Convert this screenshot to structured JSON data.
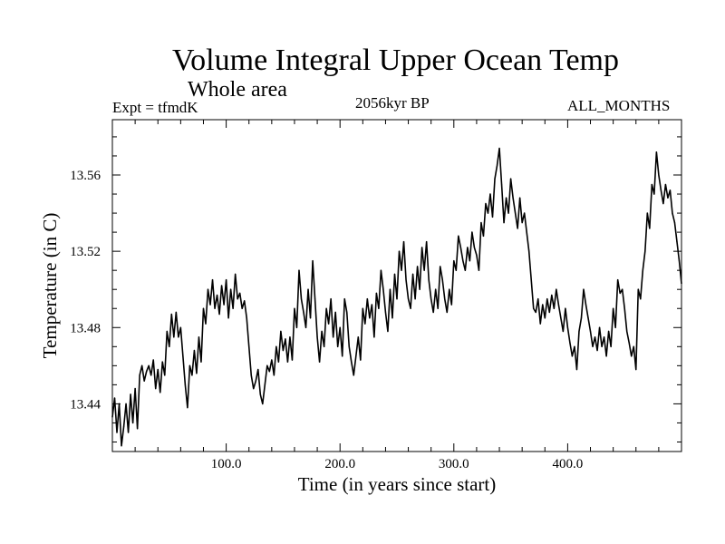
{
  "chart_data": {
    "type": "line",
    "title": "Volume Integral Upper Ocean Temp",
    "subtitle": "Whole area",
    "experiment": "Expt = tfmdK",
    "period": "2056kyr BP",
    "months": "ALL_MONTHS",
    "xlabel": "Time (in years since start)",
    "ylabel": "Temperature (in C)",
    "xlim": [
      0,
      500
    ],
    "ylim": [
      13.415,
      13.589
    ],
    "x_major_ticks": [
      100,
      200,
      300,
      400
    ],
    "x_tick_labels": [
      "100.0",
      "200.0",
      "300.0",
      "400.0"
    ],
    "y_major_ticks": [
      13.44,
      13.48,
      13.52,
      13.56
    ],
    "y_tick_labels": [
      "13.44",
      "13.48",
      "13.52",
      "13.56"
    ],
    "line_color": "#000000",
    "series": [
      {
        "name": "Temperature",
        "points": [
          [
            0,
            13.433
          ],
          [
            2,
            13.443
          ],
          [
            4,
            13.425
          ],
          [
            6,
            13.44
          ],
          [
            8,
            13.418
          ],
          [
            10,
            13.428
          ],
          [
            12,
            13.44
          ],
          [
            14,
            13.425
          ],
          [
            16,
            13.445
          ],
          [
            18,
            13.43
          ],
          [
            20,
            13.448
          ],
          [
            22,
            13.427
          ],
          [
            24,
            13.455
          ],
          [
            26,
            13.46
          ],
          [
            28,
            13.452
          ],
          [
            30,
            13.457
          ],
          [
            32,
            13.46
          ],
          [
            34,
            13.455
          ],
          [
            36,
            13.463
          ],
          [
            38,
            13.448
          ],
          [
            40,
            13.458
          ],
          [
            42,
            13.446
          ],
          [
            44,
            13.462
          ],
          [
            46,
            13.455
          ],
          [
            48,
            13.478
          ],
          [
            50,
            13.47
          ],
          [
            52,
            13.487
          ],
          [
            54,
            13.475
          ],
          [
            56,
            13.488
          ],
          [
            58,
            13.475
          ],
          [
            60,
            13.48
          ],
          [
            62,
            13.465
          ],
          [
            64,
            13.45
          ],
          [
            66,
            13.438
          ],
          [
            68,
            13.46
          ],
          [
            70,
            13.455
          ],
          [
            72,
            13.468
          ],
          [
            74,
            13.456
          ],
          [
            76,
            13.475
          ],
          [
            78,
            13.462
          ],
          [
            80,
            13.49
          ],
          [
            82,
            13.482
          ],
          [
            84,
            13.5
          ],
          [
            86,
            13.492
          ],
          [
            88,
            13.505
          ],
          [
            90,
            13.49
          ],
          [
            92,
            13.497
          ],
          [
            94,
            13.487
          ],
          [
            96,
            13.502
          ],
          [
            98,
            13.492
          ],
          [
            100,
            13.505
          ],
          [
            102,
            13.485
          ],
          [
            104,
            13.5
          ],
          [
            106,
            13.49
          ],
          [
            108,
            13.508
          ],
          [
            110,
            13.495
          ],
          [
            112,
            13.498
          ],
          [
            114,
            13.49
          ],
          [
            116,
            13.494
          ],
          [
            118,
            13.485
          ],
          [
            120,
            13.47
          ],
          [
            122,
            13.455
          ],
          [
            124,
            13.448
          ],
          [
            126,
            13.452
          ],
          [
            128,
            13.458
          ],
          [
            130,
            13.445
          ],
          [
            132,
            13.44
          ],
          [
            134,
            13.45
          ],
          [
            136,
            13.46
          ],
          [
            138,
            13.457
          ],
          [
            140,
            13.463
          ],
          [
            142,
            13.455
          ],
          [
            144,
            13.47
          ],
          [
            146,
            13.462
          ],
          [
            148,
            13.478
          ],
          [
            150,
            13.468
          ],
          [
            152,
            13.474
          ],
          [
            154,
            13.462
          ],
          [
            156,
            13.475
          ],
          [
            158,
            13.463
          ],
          [
            160,
            13.49
          ],
          [
            162,
            13.48
          ],
          [
            164,
            13.51
          ],
          [
            166,
            13.495
          ],
          [
            168,
            13.488
          ],
          [
            170,
            13.48
          ],
          [
            172,
            13.5
          ],
          [
            174,
            13.485
          ],
          [
            176,
            13.515
          ],
          [
            178,
            13.495
          ],
          [
            180,
            13.475
          ],
          [
            182,
            13.462
          ],
          [
            184,
            13.478
          ],
          [
            186,
            13.47
          ],
          [
            188,
            13.49
          ],
          [
            190,
            13.482
          ],
          [
            192,
            13.495
          ],
          [
            194,
            13.475
          ],
          [
            196,
            13.488
          ],
          [
            198,
            13.47
          ],
          [
            200,
            13.48
          ],
          [
            202,
            13.465
          ],
          [
            204,
            13.495
          ],
          [
            206,
            13.488
          ],
          [
            208,
            13.47
          ],
          [
            210,
            13.462
          ],
          [
            212,
            13.455
          ],
          [
            214,
            13.465
          ],
          [
            216,
            13.475
          ],
          [
            218,
            13.463
          ],
          [
            220,
            13.49
          ],
          [
            222,
            13.482
          ],
          [
            224,
            13.495
          ],
          [
            226,
            13.485
          ],
          [
            228,
            13.492
          ],
          [
            230,
            13.475
          ],
          [
            232,
            13.498
          ],
          [
            234,
            13.49
          ],
          [
            236,
            13.51
          ],
          [
            238,
            13.5
          ],
          [
            240,
            13.488
          ],
          [
            242,
            13.478
          ],
          [
            244,
            13.5
          ],
          [
            246,
            13.485
          ],
          [
            248,
            13.508
          ],
          [
            250,
            13.495
          ],
          [
            252,
            13.52
          ],
          [
            254,
            13.51
          ],
          [
            256,
            13.525
          ],
          [
            258,
            13.505
          ],
          [
            260,
            13.495
          ],
          [
            262,
            13.49
          ],
          [
            264,
            13.508
          ],
          [
            266,
            13.495
          ],
          [
            268,
            13.512
          ],
          [
            270,
            13.5
          ],
          [
            272,
            13.522
          ],
          [
            274,
            13.51
          ],
          [
            276,
            13.525
          ],
          [
            278,
            13.505
          ],
          [
            280,
            13.495
          ],
          [
            282,
            13.488
          ],
          [
            284,
            13.5
          ],
          [
            286,
            13.49
          ],
          [
            288,
            13.512
          ],
          [
            290,
            13.505
          ],
          [
            292,
            13.495
          ],
          [
            294,
            13.488
          ],
          [
            296,
            13.5
          ],
          [
            298,
            13.492
          ],
          [
            300,
            13.515
          ],
          [
            302,
            13.51
          ],
          [
            304,
            13.528
          ],
          [
            306,
            13.522
          ],
          [
            308,
            13.515
          ],
          [
            310,
            13.51
          ],
          [
            312,
            13.522
          ],
          [
            314,
            13.515
          ],
          [
            316,
            13.53
          ],
          [
            318,
            13.522
          ],
          [
            320,
            13.518
          ],
          [
            322,
            13.51
          ],
          [
            324,
            13.535
          ],
          [
            326,
            13.528
          ],
          [
            328,
            13.545
          ],
          [
            330,
            13.54
          ],
          [
            332,
            13.55
          ],
          [
            334,
            13.538
          ],
          [
            336,
            13.558
          ],
          [
            338,
            13.565
          ],
          [
            340,
            13.574
          ],
          [
            342,
            13.555
          ],
          [
            344,
            13.535
          ],
          [
            346,
            13.548
          ],
          [
            348,
            13.54
          ],
          [
            350,
            13.558
          ],
          [
            352,
            13.548
          ],
          [
            354,
            13.54
          ],
          [
            356,
            13.532
          ],
          [
            358,
            13.548
          ],
          [
            360,
            13.535
          ],
          [
            362,
            13.54
          ],
          [
            364,
            13.53
          ],
          [
            366,
            13.52
          ],
          [
            368,
            13.505
          ],
          [
            370,
            13.49
          ],
          [
            372,
            13.488
          ],
          [
            374,
            13.495
          ],
          [
            376,
            13.482
          ],
          [
            378,
            13.492
          ],
          [
            380,
            13.485
          ],
          [
            382,
            13.495
          ],
          [
            384,
            13.488
          ],
          [
            386,
            13.497
          ],
          [
            388,
            13.49
          ],
          [
            390,
            13.5
          ],
          [
            392,
            13.492
          ],
          [
            394,
            13.485
          ],
          [
            396,
            13.478
          ],
          [
            398,
            13.49
          ],
          [
            400,
            13.48
          ],
          [
            402,
            13.472
          ],
          [
            404,
            13.465
          ],
          [
            406,
            13.47
          ],
          [
            408,
            13.458
          ],
          [
            410,
            13.478
          ],
          [
            412,
            13.485
          ],
          [
            414,
            13.5
          ],
          [
            416,
            13.492
          ],
          [
            418,
            13.485
          ],
          [
            420,
            13.478
          ],
          [
            422,
            13.47
          ],
          [
            424,
            13.475
          ],
          [
            426,
            13.468
          ],
          [
            428,
            13.48
          ],
          [
            430,
            13.47
          ],
          [
            432,
            13.475
          ],
          [
            434,
            13.465
          ],
          [
            436,
            13.478
          ],
          [
            438,
            13.47
          ],
          [
            440,
            13.49
          ],
          [
            442,
            13.48
          ],
          [
            444,
            13.505
          ],
          [
            446,
            13.498
          ],
          [
            448,
            13.5
          ],
          [
            450,
            13.49
          ],
          [
            452,
            13.478
          ],
          [
            454,
            13.472
          ],
          [
            456,
            13.465
          ],
          [
            458,
            13.47
          ],
          [
            460,
            13.458
          ],
          [
            462,
            13.5
          ],
          [
            464,
            13.495
          ],
          [
            466,
            13.51
          ],
          [
            468,
            13.52
          ],
          [
            470,
            13.54
          ],
          [
            472,
            13.532
          ],
          [
            474,
            13.555
          ],
          [
            476,
            13.55
          ],
          [
            478,
            13.572
          ],
          [
            480,
            13.56
          ],
          [
            482,
            13.552
          ],
          [
            484,
            13.545
          ],
          [
            486,
            13.555
          ],
          [
            488,
            13.548
          ],
          [
            490,
            13.552
          ],
          [
            492,
            13.54
          ],
          [
            494,
            13.535
          ],
          [
            496,
            13.525
          ],
          [
            498,
            13.515
          ],
          [
            500,
            13.503
          ]
        ]
      }
    ]
  }
}
